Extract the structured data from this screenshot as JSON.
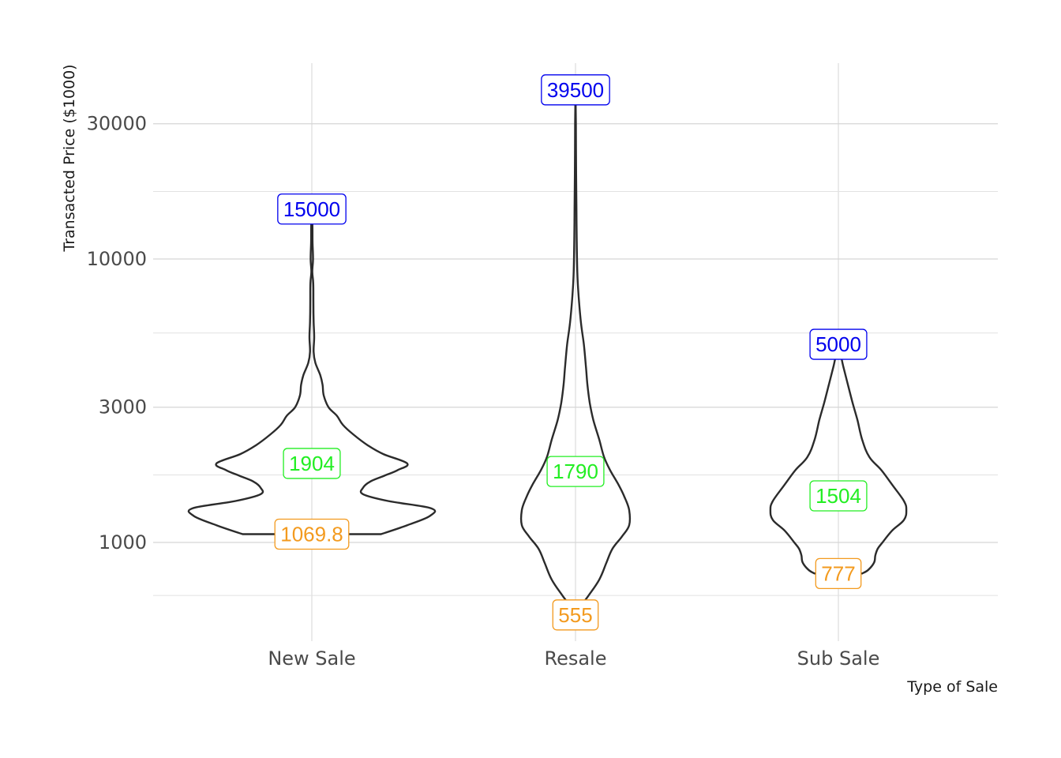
{
  "chart_data": {
    "type": "violin",
    "xlabel": "Type of Sale",
    "ylabel": "Transacted Price ($1000)",
    "y_scale": "log10",
    "ylim": [
      640,
      52000
    ],
    "y_ticks": [
      {
        "value": 1000,
        "label": "1000"
      },
      {
        "value": 3000,
        "label": "3000"
      },
      {
        "value": 10000,
        "label": "10000"
      },
      {
        "value": 30000,
        "label": "30000"
      }
    ],
    "y_minor_gridlines": [
      650,
      1730,
      5480,
      17300
    ],
    "grid": true,
    "colors": {
      "outline": "#2b2b2b",
      "max_label": "#0000ee",
      "median_label": "#22ee22",
      "min_label": "#f39a1e",
      "grid": "#d5d5d5"
    },
    "categories": [
      {
        "name": "New Sale",
        "max": 15000,
        "max_label": "15000",
        "median": 1904,
        "median_label": "1904",
        "min": 1069.8,
        "min_label": "1069.8",
        "median_label_y": 1900,
        "density": [
          [
            1069.8,
            0.58
          ],
          [
            1150,
            0.8
          ],
          [
            1240,
            0.99
          ],
          [
            1320,
            1.0
          ],
          [
            1400,
            0.64
          ],
          [
            1480,
            0.43
          ],
          [
            1560,
            0.43
          ],
          [
            1640,
            0.49
          ],
          [
            1720,
            0.61
          ],
          [
            1800,
            0.72
          ],
          [
            1900,
            0.8
          ],
          [
            2050,
            0.6
          ],
          [
            2200,
            0.47
          ],
          [
            2400,
            0.35
          ],
          [
            2600,
            0.26
          ],
          [
            2800,
            0.21
          ],
          [
            3000,
            0.14
          ],
          [
            3300,
            0.1
          ],
          [
            3600,
            0.09
          ],
          [
            3900,
            0.07
          ],
          [
            4300,
            0.03
          ],
          [
            4700,
            0.015
          ],
          [
            5300,
            0.02
          ],
          [
            6000,
            0.015
          ],
          [
            7000,
            0.013
          ],
          [
            8200,
            0.012
          ],
          [
            9000,
            0.004
          ],
          [
            10000,
            0.01
          ],
          [
            11500,
            0.006
          ],
          [
            13000,
            0.005
          ],
          [
            15000,
            0.0
          ]
        ]
      },
      {
        "name": "Resale",
        "max": 39500,
        "max_label": "39500",
        "median": 1790,
        "median_label": "1790",
        "min": 555,
        "min_label": "555",
        "median_label_y": 1780,
        "density": [
          [
            555,
            0.0
          ],
          [
            600,
            0.05
          ],
          [
            650,
            0.11
          ],
          [
            740,
            0.2
          ],
          [
            850,
            0.26
          ],
          [
            950,
            0.31
          ],
          [
            1050,
            0.39
          ],
          [
            1150,
            0.45
          ],
          [
            1300,
            0.45
          ],
          [
            1450,
            0.41
          ],
          [
            1600,
            0.36
          ],
          [
            1800,
            0.29
          ],
          [
            2000,
            0.24
          ],
          [
            2300,
            0.2
          ],
          [
            2700,
            0.15
          ],
          [
            3100,
            0.12
          ],
          [
            3600,
            0.1
          ],
          [
            4200,
            0.087
          ],
          [
            5000,
            0.07
          ],
          [
            6000,
            0.045
          ],
          [
            7500,
            0.025
          ],
          [
            9000,
            0.015
          ],
          [
            12000,
            0.01
          ],
          [
            15000,
            0.008
          ],
          [
            20000,
            0.005
          ],
          [
            30000,
            0.003
          ],
          [
            39500,
            0.0
          ]
        ]
      },
      {
        "name": "Sub Sale",
        "max": 5000,
        "max_label": "5000",
        "median": 1504,
        "median_label": "1504",
        "min": 777,
        "min_label": "777",
        "median_label_y": 1460,
        "density": [
          [
            777,
            0.2
          ],
          [
            800,
            0.25
          ],
          [
            850,
            0.3
          ],
          [
            900,
            0.31
          ],
          [
            950,
            0.33
          ],
          [
            1000,
            0.37
          ],
          [
            1100,
            0.45
          ],
          [
            1200,
            0.55
          ],
          [
            1300,
            0.57
          ],
          [
            1400,
            0.55
          ],
          [
            1600,
            0.45
          ],
          [
            1800,
            0.36
          ],
          [
            2000,
            0.26
          ],
          [
            2300,
            0.2
          ],
          [
            2700,
            0.16
          ],
          [
            3100,
            0.12
          ],
          [
            3600,
            0.08
          ],
          [
            4200,
            0.04
          ],
          [
            4600,
            0.02
          ],
          [
            5000,
            0.0
          ]
        ]
      }
    ]
  }
}
